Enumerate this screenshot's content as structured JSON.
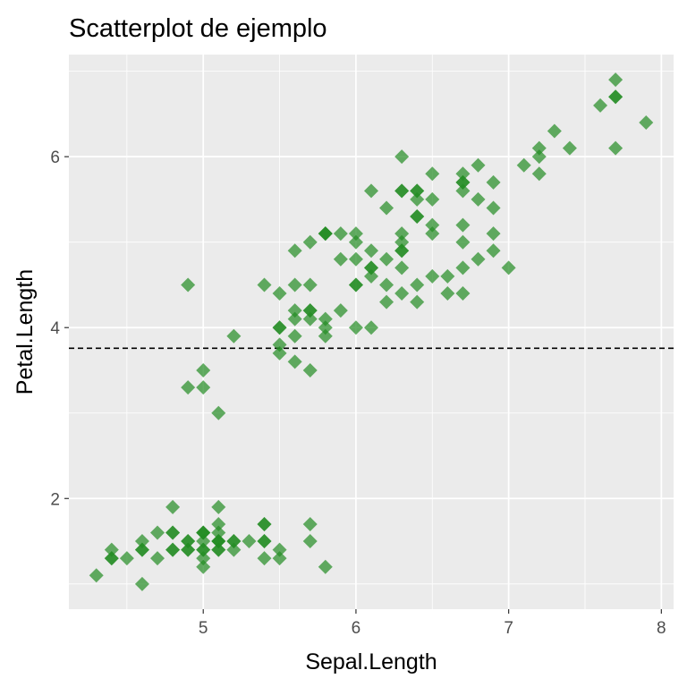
{
  "chart_data": {
    "type": "scatter",
    "title": "Scatterplot de ejemplo",
    "xlabel": "Sepal.Length",
    "ylabel": "Petal.Length",
    "xlim": [
      4.12,
      8.08
    ],
    "ylim": [
      0.705,
      7.195
    ],
    "xticks": [
      5,
      6,
      7,
      8
    ],
    "yticks": [
      2,
      4,
      6
    ],
    "x_minor": [
      4.5,
      5.5,
      6.5,
      7.5
    ],
    "y_minor": [
      1,
      3,
      5,
      7
    ],
    "grid": true,
    "hline": {
      "y": 3.758,
      "style": "dashed"
    },
    "marker": {
      "shape": "diamond",
      "color": "#228b22",
      "opacity": 0.7
    },
    "points": [
      [
        5.1,
        1.4
      ],
      [
        4.9,
        1.4
      ],
      [
        4.7,
        1.3
      ],
      [
        4.6,
        1.5
      ],
      [
        5.0,
        1.4
      ],
      [
        5.4,
        1.7
      ],
      [
        4.6,
        1.4
      ],
      [
        5.0,
        1.5
      ],
      [
        4.4,
        1.4
      ],
      [
        4.9,
        1.5
      ],
      [
        5.4,
        1.5
      ],
      [
        4.8,
        1.6
      ],
      [
        4.8,
        1.4
      ],
      [
        4.3,
        1.1
      ],
      [
        5.8,
        1.2
      ],
      [
        5.7,
        1.5
      ],
      [
        5.4,
        1.3
      ],
      [
        5.1,
        1.4
      ],
      [
        5.7,
        1.7
      ],
      [
        5.1,
        1.5
      ],
      [
        5.4,
        1.7
      ],
      [
        5.1,
        1.5
      ],
      [
        4.6,
        1.0
      ],
      [
        5.1,
        1.7
      ],
      [
        4.8,
        1.9
      ],
      [
        5.0,
        1.6
      ],
      [
        5.0,
        1.6
      ],
      [
        5.2,
        1.5
      ],
      [
        5.2,
        1.4
      ],
      [
        4.7,
        1.6
      ],
      [
        4.8,
        1.6
      ],
      [
        5.4,
        1.5
      ],
      [
        5.2,
        1.5
      ],
      [
        5.5,
        1.4
      ],
      [
        4.9,
        1.5
      ],
      [
        5.0,
        1.2
      ],
      [
        5.5,
        1.3
      ],
      [
        4.9,
        1.4
      ],
      [
        4.4,
        1.3
      ],
      [
        5.1,
        1.5
      ],
      [
        5.0,
        1.3
      ],
      [
        4.5,
        1.3
      ],
      [
        4.4,
        1.3
      ],
      [
        5.0,
        1.6
      ],
      [
        5.1,
        1.9
      ],
      [
        4.8,
        1.4
      ],
      [
        5.1,
        1.6
      ],
      [
        4.6,
        1.4
      ],
      [
        5.3,
        1.5
      ],
      [
        5.0,
        1.4
      ],
      [
        7.0,
        4.7
      ],
      [
        6.4,
        4.5
      ],
      [
        6.9,
        4.9
      ],
      [
        5.5,
        4.0
      ],
      [
        6.5,
        4.6
      ],
      [
        5.7,
        4.5
      ],
      [
        6.3,
        4.7
      ],
      [
        4.9,
        3.3
      ],
      [
        6.6,
        4.6
      ],
      [
        5.2,
        3.9
      ],
      [
        5.0,
        3.5
      ],
      [
        5.9,
        4.2
      ],
      [
        6.0,
        4.0
      ],
      [
        6.1,
        4.7
      ],
      [
        5.6,
        3.6
      ],
      [
        6.7,
        4.4
      ],
      [
        5.6,
        4.5
      ],
      [
        5.8,
        4.1
      ],
      [
        6.2,
        4.5
      ],
      [
        5.6,
        3.9
      ],
      [
        5.9,
        4.8
      ],
      [
        6.1,
        4.0
      ],
      [
        6.3,
        4.9
      ],
      [
        6.1,
        4.7
      ],
      [
        6.4,
        4.3
      ],
      [
        6.6,
        4.4
      ],
      [
        6.8,
        4.8
      ],
      [
        6.7,
        5.0
      ],
      [
        6.0,
        4.5
      ],
      [
        5.7,
        3.5
      ],
      [
        5.5,
        3.8
      ],
      [
        5.5,
        3.7
      ],
      [
        5.8,
        3.9
      ],
      [
        6.0,
        5.1
      ],
      [
        5.4,
        4.5
      ],
      [
        6.0,
        4.5
      ],
      [
        6.7,
        4.7
      ],
      [
        6.3,
        4.4
      ],
      [
        5.6,
        4.1
      ],
      [
        5.5,
        4.0
      ],
      [
        5.5,
        4.4
      ],
      [
        6.1,
        4.6
      ],
      [
        5.8,
        4.0
      ],
      [
        5.0,
        3.3
      ],
      [
        5.6,
        4.2
      ],
      [
        5.7,
        4.2
      ],
      [
        5.7,
        4.2
      ],
      [
        6.2,
        4.3
      ],
      [
        5.1,
        3.0
      ],
      [
        5.7,
        4.1
      ],
      [
        6.3,
        6.0
      ],
      [
        5.8,
        5.1
      ],
      [
        7.1,
        5.9
      ],
      [
        6.3,
        5.6
      ],
      [
        6.5,
        5.8
      ],
      [
        7.6,
        6.6
      ],
      [
        4.9,
        4.5
      ],
      [
        7.3,
        6.3
      ],
      [
        6.7,
        5.8
      ],
      [
        7.2,
        6.1
      ],
      [
        6.5,
        5.1
      ],
      [
        6.4,
        5.3
      ],
      [
        6.8,
        5.5
      ],
      [
        5.7,
        5.0
      ],
      [
        5.8,
        5.1
      ],
      [
        6.4,
        5.3
      ],
      [
        6.5,
        5.5
      ],
      [
        7.7,
        6.7
      ],
      [
        7.7,
        6.9
      ],
      [
        6.0,
        5.0
      ],
      [
        6.9,
        5.7
      ],
      [
        5.6,
        4.9
      ],
      [
        7.7,
        6.7
      ],
      [
        6.3,
        4.9
      ],
      [
        6.7,
        5.7
      ],
      [
        7.2,
        6.0
      ],
      [
        6.2,
        4.8
      ],
      [
        6.1,
        4.9
      ],
      [
        6.4,
        5.6
      ],
      [
        7.2,
        5.8
      ],
      [
        7.4,
        6.1
      ],
      [
        7.9,
        6.4
      ],
      [
        6.4,
        5.6
      ],
      [
        6.3,
        5.1
      ],
      [
        6.1,
        5.6
      ],
      [
        7.7,
        6.1
      ],
      [
        6.3,
        5.6
      ],
      [
        6.4,
        5.5
      ],
      [
        6.0,
        4.8
      ],
      [
        6.9,
        5.4
      ],
      [
        6.7,
        5.6
      ],
      [
        6.9,
        5.1
      ],
      [
        5.8,
        5.1
      ],
      [
        6.8,
        5.9
      ],
      [
        6.7,
        5.7
      ],
      [
        6.7,
        5.2
      ],
      [
        6.3,
        5.0
      ],
      [
        6.5,
        5.2
      ],
      [
        6.2,
        5.4
      ],
      [
        5.9,
        5.1
      ]
    ]
  }
}
